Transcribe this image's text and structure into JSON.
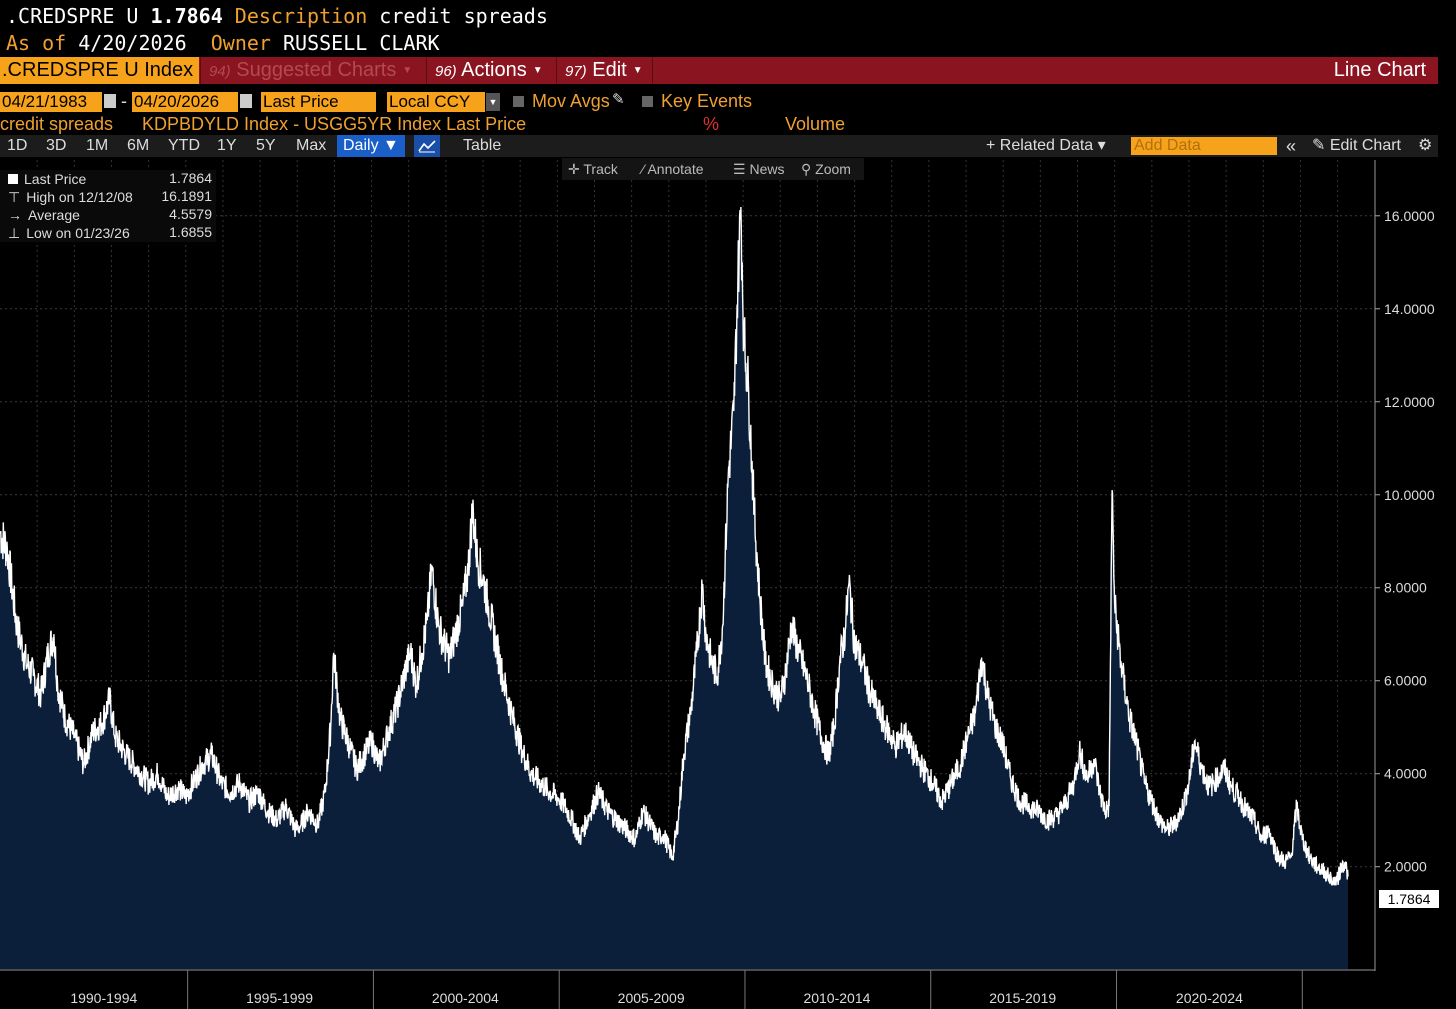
{
  "header": {
    "ticker": ".CREDSPRE U",
    "last_value": "1.7864",
    "description_label": "Description",
    "description": "credit spreads",
    "asof_label": "As of",
    "asof_date": "4/20/2026",
    "owner_label": "Owner",
    "owner": "RUSSELL CLARK"
  },
  "menubar": {
    "security": ".CREDSPRE U Index",
    "suggested_num": "94)",
    "suggested_label": "Suggested Charts",
    "actions_num": "96)",
    "actions_label": "Actions",
    "edit_num": "97)",
    "edit_label": "Edit",
    "chart_type": "Line Chart"
  },
  "params": {
    "start_date": "04/21/1983",
    "dash": "-",
    "end_date": "04/20/2026",
    "price_field": "Last Price",
    "currency": "Local CCY",
    "mov_avgs": "Mov Avgs",
    "key_events": "Key Events"
  },
  "series_row": {
    "name": "credit spreads",
    "formula": "KDPBDYLD Index - USGG5YR Index Last Price",
    "unit": "%",
    "volume": "Volume"
  },
  "toolbar": {
    "periods": [
      "1D",
      "3D",
      "1M",
      "6M",
      "YTD",
      "1Y",
      "5Y",
      "Max"
    ],
    "frequency": "Daily ▼",
    "table": "Table",
    "related": "+ Related Data ▾",
    "add_data_placeholder": "Add Data",
    "collapse": "«",
    "edit_chart": "Edit Chart"
  },
  "annotation_bar": {
    "track": "Track",
    "annotate": "Annotate",
    "news": "News",
    "zoom": "Zoom"
  },
  "legend": {
    "last_label": "Last Price",
    "last_value": "1.7864",
    "high_label": "High on 12/12/08",
    "high_value": "16.1891",
    "avg_label": "Average",
    "avg_value": "4.5579",
    "low_label": "Low on 01/23/26",
    "low_value": "1.6855"
  },
  "colors": {
    "background": "#000000",
    "area_fill": "#0b1f3a",
    "line": "#ffffff",
    "accent_orange": "#f7a21b",
    "bar_red": "#8a1420",
    "grid": "#3a3a3a"
  },
  "chart_data": {
    "type": "area",
    "title": "credit spreads",
    "ylabel": "",
    "xlabel": "",
    "x_range": [
      "1983-04-21",
      "2026-04-20"
    ],
    "ylim": [
      -0.2,
      17.2
    ],
    "y_ticks": [
      "2.0000",
      "4.0000",
      "6.0000",
      "8.0000",
      "10.0000",
      "12.0000",
      "14.0000",
      "16.0000"
    ],
    "x_tick_labels": [
      "1990-1994",
      "1995-1999",
      "2000-2004",
      "2005-2009",
      "2010-2014",
      "2015-2019",
      "2020-2024"
    ],
    "last_value_label": "1.7864",
    "grid": true,
    "series": [
      {
        "values": [
          [
            1990.0,
            9.2
          ],
          [
            1990.2,
            8.8
          ],
          [
            1990.45,
            7.2
          ],
          [
            1990.7,
            6.4
          ],
          [
            1990.9,
            6.1
          ],
          [
            1991.1,
            5.7
          ],
          [
            1991.3,
            6.6
          ],
          [
            1991.45,
            7.0
          ],
          [
            1991.55,
            5.9
          ],
          [
            1991.75,
            5.2
          ],
          [
            1992.0,
            4.8
          ],
          [
            1992.25,
            4.2
          ],
          [
            1992.5,
            4.9
          ],
          [
            1992.75,
            5.1
          ],
          [
            1992.95,
            5.6
          ],
          [
            1993.1,
            4.8
          ],
          [
            1993.4,
            4.4
          ],
          [
            1993.7,
            4.1
          ],
          [
            1994.0,
            3.8
          ],
          [
            1994.25,
            4.0
          ],
          [
            1994.5,
            3.5
          ],
          [
            1994.8,
            3.7
          ],
          [
            1995.0,
            3.5
          ],
          [
            1995.2,
            3.8
          ],
          [
            1995.45,
            4.2
          ],
          [
            1995.7,
            4.4
          ],
          [
            1995.95,
            3.8
          ],
          [
            1996.2,
            3.6
          ],
          [
            1996.45,
            3.8
          ],
          [
            1996.7,
            3.4
          ],
          [
            1996.95,
            3.6
          ],
          [
            1997.2,
            3.2
          ],
          [
            1997.45,
            3.0
          ],
          [
            1997.7,
            3.3
          ],
          [
            1997.95,
            2.8
          ],
          [
            1998.1,
            2.9
          ],
          [
            1998.3,
            3.2
          ],
          [
            1998.55,
            2.9
          ],
          [
            1998.75,
            3.6
          ],
          [
            1998.9,
            5.0
          ],
          [
            1998.98,
            6.6
          ],
          [
            1999.15,
            5.2
          ],
          [
            1999.4,
            4.6
          ],
          [
            1999.6,
            4.1
          ],
          [
            1999.8,
            4.4
          ],
          [
            2000.0,
            4.7
          ],
          [
            2000.2,
            4.2
          ],
          [
            2000.45,
            4.9
          ],
          [
            2000.7,
            5.5
          ],
          [
            2000.9,
            6.2
          ],
          [
            2001.05,
            6.6
          ],
          [
            2001.2,
            5.9
          ],
          [
            2001.35,
            6.6
          ],
          [
            2001.5,
            7.3
          ],
          [
            2001.62,
            8.4
          ],
          [
            2001.8,
            7.2
          ],
          [
            2001.95,
            6.8
          ],
          [
            2002.1,
            6.5
          ],
          [
            2002.25,
            7.0
          ],
          [
            2002.45,
            7.6
          ],
          [
            2002.6,
            8.4
          ],
          [
            2002.72,
            9.7
          ],
          [
            2002.85,
            8.6
          ],
          [
            2003.0,
            8.2
          ],
          [
            2003.15,
            7.6
          ],
          [
            2003.35,
            6.8
          ],
          [
            2003.55,
            6.0
          ],
          [
            2003.8,
            5.2
          ],
          [
            2004.05,
            4.5
          ],
          [
            2004.3,
            4.0
          ],
          [
            2004.55,
            3.8
          ],
          [
            2004.8,
            3.6
          ],
          [
            2005.0,
            3.5
          ],
          [
            2005.2,
            3.3
          ],
          [
            2005.4,
            3.0
          ],
          [
            2005.6,
            2.6
          ],
          [
            2005.85,
            3.1
          ],
          [
            2006.1,
            3.6
          ],
          [
            2006.35,
            3.2
          ],
          [
            2006.6,
            3.0
          ],
          [
            2006.85,
            2.8
          ],
          [
            2007.1,
            2.6
          ],
          [
            2007.3,
            3.2
          ],
          [
            2007.5,
            2.9
          ],
          [
            2007.7,
            2.6
          ],
          [
            2007.85,
            2.7
          ],
          [
            2008.0,
            2.4
          ],
          [
            2008.1,
            2.2
          ],
          [
            2008.25,
            3.0
          ],
          [
            2008.4,
            4.4
          ],
          [
            2008.6,
            5.4
          ],
          [
            2008.75,
            6.6
          ],
          [
            2008.9,
            8.0
          ],
          [
            2009.0,
            7.0
          ],
          [
            2009.15,
            6.4
          ],
          [
            2009.3,
            6.1
          ],
          [
            2009.45,
            7.2
          ],
          [
            2009.6,
            10.4
          ],
          [
            2009.75,
            11.8
          ],
          [
            2009.86,
            14.6
          ],
          [
            2009.94,
            16.19
          ],
          [
            2010.02,
            13.4
          ],
          [
            2010.15,
            12.2
          ],
          [
            2010.3,
            9.6
          ],
          [
            2010.45,
            7.8
          ],
          [
            2010.6,
            6.4
          ],
          [
            2010.8,
            5.9
          ],
          [
            2011.0,
            5.6
          ],
          [
            2011.15,
            6.2
          ],
          [
            2011.3,
            7.2
          ],
          [
            2011.5,
            6.6
          ],
          [
            2011.7,
            6.1
          ],
          [
            2011.9,
            5.4
          ],
          [
            2012.1,
            4.8
          ],
          [
            2012.3,
            4.4
          ],
          [
            2012.45,
            5.0
          ],
          [
            2012.6,
            6.4
          ],
          [
            2012.75,
            7.1
          ],
          [
            2012.85,
            8.1
          ],
          [
            2013.0,
            6.8
          ],
          [
            2013.2,
            6.4
          ],
          [
            2013.4,
            5.8
          ],
          [
            2013.6,
            5.4
          ],
          [
            2013.85,
            5.0
          ],
          [
            2014.1,
            4.6
          ],
          [
            2014.35,
            4.9
          ],
          [
            2014.6,
            4.4
          ],
          [
            2014.85,
            4.1
          ],
          [
            2015.1,
            3.8
          ],
          [
            2015.35,
            3.4
          ],
          [
            2015.6,
            3.8
          ],
          [
            2015.85,
            4.2
          ],
          [
            2016.05,
            4.8
          ],
          [
            2016.25,
            5.3
          ],
          [
            2016.42,
            6.5
          ],
          [
            2016.6,
            5.6
          ],
          [
            2016.8,
            5.0
          ],
          [
            2017.0,
            4.6
          ],
          [
            2017.2,
            3.9
          ],
          [
            2017.45,
            3.4
          ],
          [
            2017.7,
            3.3
          ],
          [
            2017.95,
            3.2
          ],
          [
            2018.2,
            3.0
          ],
          [
            2018.45,
            3.1
          ],
          [
            2018.7,
            3.4
          ],
          [
            2018.9,
            3.8
          ],
          [
            2019.05,
            4.5
          ],
          [
            2019.25,
            3.9
          ],
          [
            2019.45,
            4.3
          ],
          [
            2019.6,
            3.6
          ],
          [
            2019.75,
            3.2
          ],
          [
            2019.85,
            3.3
          ],
          [
            2019.93,
            10.1
          ],
          [
            2020.0,
            7.6
          ],
          [
            2020.2,
            6.2
          ],
          [
            2020.4,
            5.2
          ],
          [
            2020.6,
            4.6
          ],
          [
            2020.8,
            3.8
          ],
          [
            2021.0,
            3.4
          ],
          [
            2021.2,
            3.0
          ],
          [
            2021.4,
            2.8
          ],
          [
            2021.6,
            2.9
          ],
          [
            2021.8,
            3.2
          ],
          [
            2022.0,
            3.8
          ],
          [
            2022.15,
            4.7
          ],
          [
            2022.35,
            4.1
          ],
          [
            2022.55,
            3.7
          ],
          [
            2022.75,
            3.9
          ],
          [
            2022.95,
            4.1
          ],
          [
            2023.15,
            3.7
          ],
          [
            2023.35,
            3.5
          ],
          [
            2023.55,
            3.2
          ],
          [
            2023.75,
            3.0
          ],
          [
            2023.95,
            2.6
          ],
          [
            2024.15,
            2.8
          ],
          [
            2024.35,
            2.3
          ],
          [
            2024.55,
            2.1
          ],
          [
            2024.75,
            2.2
          ],
          [
            2024.9,
            3.3
          ],
          [
            2025.05,
            2.6
          ],
          [
            2025.25,
            2.2
          ],
          [
            2025.45,
            2.0
          ],
          [
            2025.65,
            1.9
          ],
          [
            2025.85,
            1.7
          ],
          [
            2025.98,
            1.6855
          ],
          [
            2026.1,
            2.0
          ],
          [
            2026.2,
            2.1
          ],
          [
            2026.28,
            1.7864
          ]
        ]
      }
    ]
  }
}
